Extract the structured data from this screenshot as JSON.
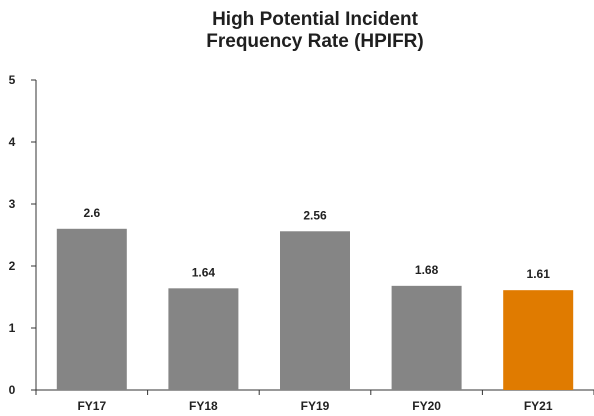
{
  "chart_data": {
    "type": "bar",
    "title_lines": [
      "High Potential Incident",
      "Frequency Rate (HPIFR)"
    ],
    "categories": [
      "FY17",
      "FY18",
      "FY19",
      "FY20",
      "FY21"
    ],
    "values": [
      2.6,
      1.64,
      2.56,
      1.68,
      1.61
    ],
    "data_labels": [
      "2.6",
      "1.64",
      "2.56",
      "1.68",
      "1.61"
    ],
    "ylim": [
      0,
      5
    ],
    "yticks": [
      0,
      1,
      2,
      3,
      4,
      5
    ],
    "xlabel": "",
    "ylabel": "",
    "grid": false,
    "legend": "none",
    "colors": {
      "bar_default": "#858585",
      "bar_highlight": "#e07b00",
      "axis": "#333333"
    },
    "highlight_index": 4
  }
}
